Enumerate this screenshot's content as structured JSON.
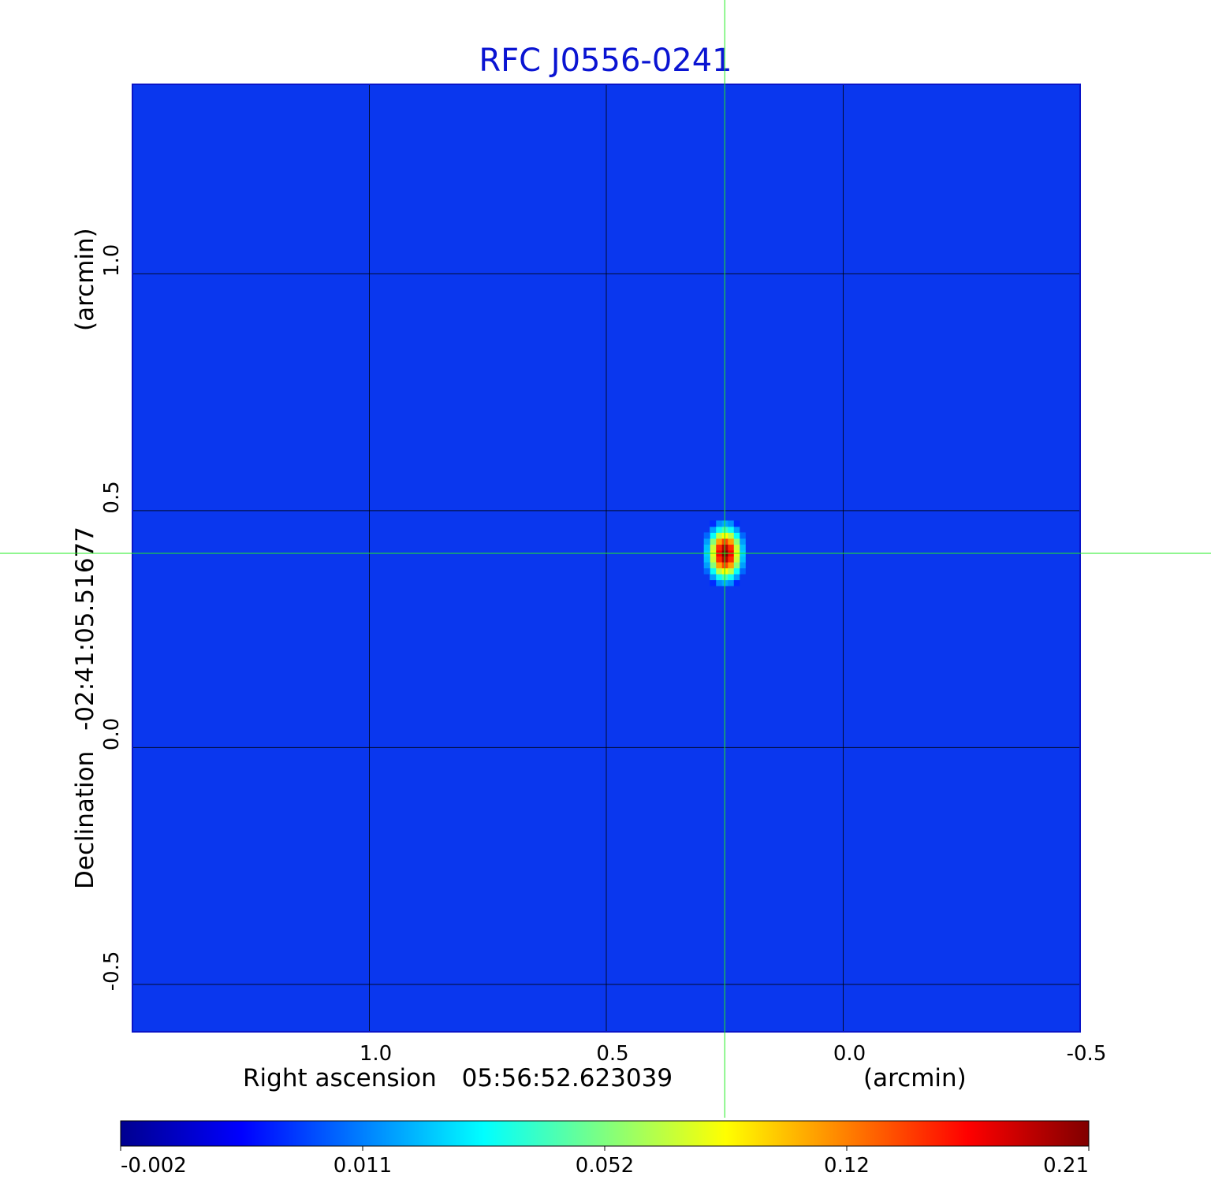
{
  "chart_data": {
    "type": "heatmap",
    "title": "RFC J0556-0241",
    "xlabel": "Right ascension",
    "x_center": "05:56:52.623039",
    "x_unit": "(arcmin)",
    "ylabel": "Declination",
    "y_center": "-02:41:05.51677",
    "y_unit": "(arcmin)",
    "xlim": [
      1.5,
      -0.5
    ],
    "ylim": [
      -0.6,
      1.4
    ],
    "x_ticks": [
      1.0,
      0.5,
      0.0,
      -0.5
    ],
    "x_tick_labels": [
      "1.0",
      "0.5",
      "0.0",
      "-0.5"
    ],
    "y_ticks": [
      1.0,
      0.5,
      0.0,
      -0.5
    ],
    "y_tick_labels": [
      "1.0",
      "0.5",
      "0.0",
      "-0.5"
    ],
    "grid": true,
    "crosshair": {
      "x": 0.25,
      "y": 0.41,
      "color": "#22ee22"
    },
    "source": {
      "peak_x": 0.25,
      "peak_y": 0.41,
      "peak_value": 0.21,
      "sigma_x": 0.018,
      "sigma_y": 0.028
    },
    "colormap": "jet",
    "colorbar": {
      "ticks": [
        "-0.002",
        "0.011",
        "0.052",
        "0.12",
        "0.21"
      ],
      "range": [
        -0.002,
        0.21
      ]
    },
    "background_color": "#0a37ee",
    "grid_color": "#000000"
  }
}
